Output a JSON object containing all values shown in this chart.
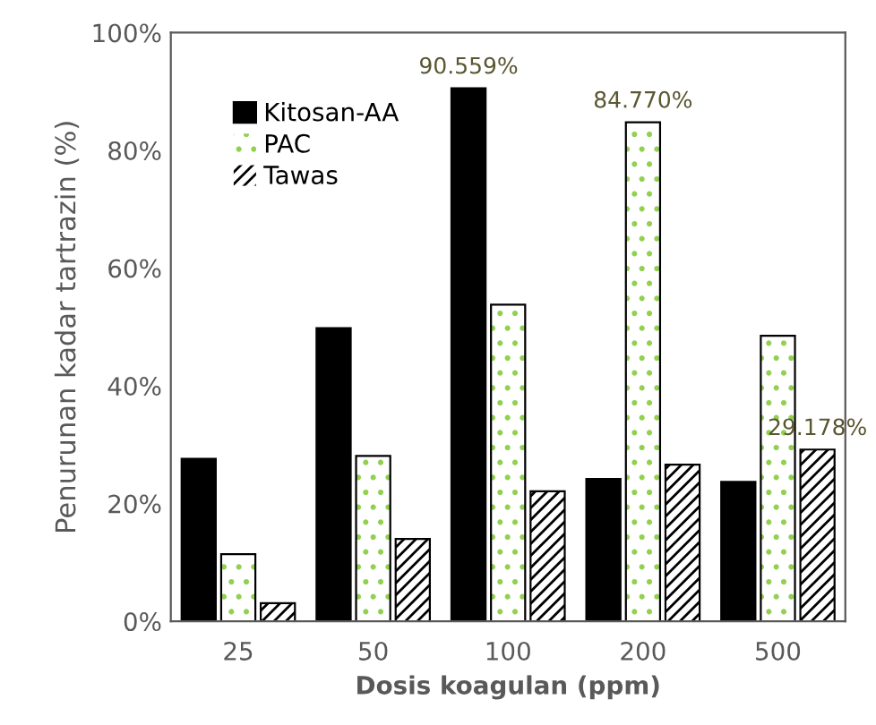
{
  "chart_data": {
    "type": "bar",
    "xlabel": "Dosis koagulan (ppm)",
    "ylabel": "Penurunan kadar tartrazin (%)",
    "categories": [
      "25",
      "50",
      "100",
      "200",
      "500"
    ],
    "series": [
      {
        "name": "Kitosan-AA",
        "color": "#000000",
        "values": [
          27.6,
          49.8,
          90.559,
          24.2,
          23.7
        ],
        "value_labels": [
          null,
          null,
          "90.559%",
          null,
          null
        ]
      },
      {
        "name": "PAC",
        "color": "#92d050",
        "values": [
          11.4,
          28.1,
          53.8,
          84.77,
          48.5
        ],
        "value_labels": [
          null,
          null,
          null,
          "84.770%",
          null
        ]
      },
      {
        "name": "Tawas",
        "color": "#000000",
        "values": [
          3.1,
          14.0,
          22.1,
          26.6,
          29.178
        ],
        "value_labels": [
          null,
          null,
          null,
          null,
          "29.178%"
        ]
      }
    ],
    "ylim": [
      0,
      100
    ],
    "yticks": [
      {
        "value": 0,
        "label": "0%"
      },
      {
        "value": 20,
        "label": "20%"
      },
      {
        "value": 40,
        "label": "40%"
      },
      {
        "value": 60,
        "label": "60%"
      },
      {
        "value": 80,
        "label": "80%"
      },
      {
        "value": 100,
        "label": "100%"
      }
    ],
    "grid": false,
    "legend": "top left"
  }
}
